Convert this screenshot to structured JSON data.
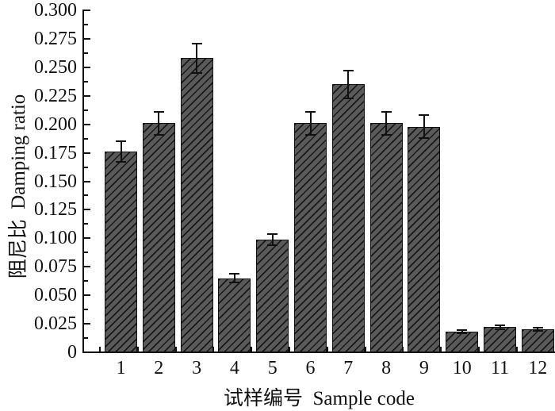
{
  "figure": {
    "background": "#ffffff",
    "text_color": "#111111"
  },
  "chart_data": {
    "type": "bar",
    "title": "",
    "xlabel": "试样编号  Sample code",
    "ylabel": "阻尼比  Damping ratio",
    "categories": [
      "1",
      "2",
      "3",
      "4",
      "5",
      "6",
      "7",
      "8",
      "9",
      "10",
      "11",
      "12"
    ],
    "values": [
      0.176,
      0.201,
      0.258,
      0.065,
      0.099,
      0.201,
      0.235,
      0.201,
      0.198,
      0.018,
      0.022,
      0.02
    ],
    "errors": [
      0.009,
      0.01,
      0.013,
      0.004,
      0.005,
      0.01,
      0.012,
      0.01,
      0.01,
      0.0015,
      0.0015,
      0.0015
    ],
    "ylim": [
      0,
      0.3
    ],
    "ytick_step": 0.025,
    "ytick_minor_step": 0.0125,
    "ytick_labels": [
      "0",
      "0.025",
      "0.050",
      "0.075",
      "0.100",
      "0.125",
      "0.150",
      "0.175",
      "0.200",
      "0.225",
      "0.250",
      "0.275",
      "0.300"
    ],
    "grid": false,
    "legend": null,
    "style": {
      "bar_fill": "#5a5a5a",
      "bar_edge": "#111111",
      "bar_hatch": "forward-diagonal",
      "error_color": "#111111",
      "axis_color": "#111111"
    }
  }
}
